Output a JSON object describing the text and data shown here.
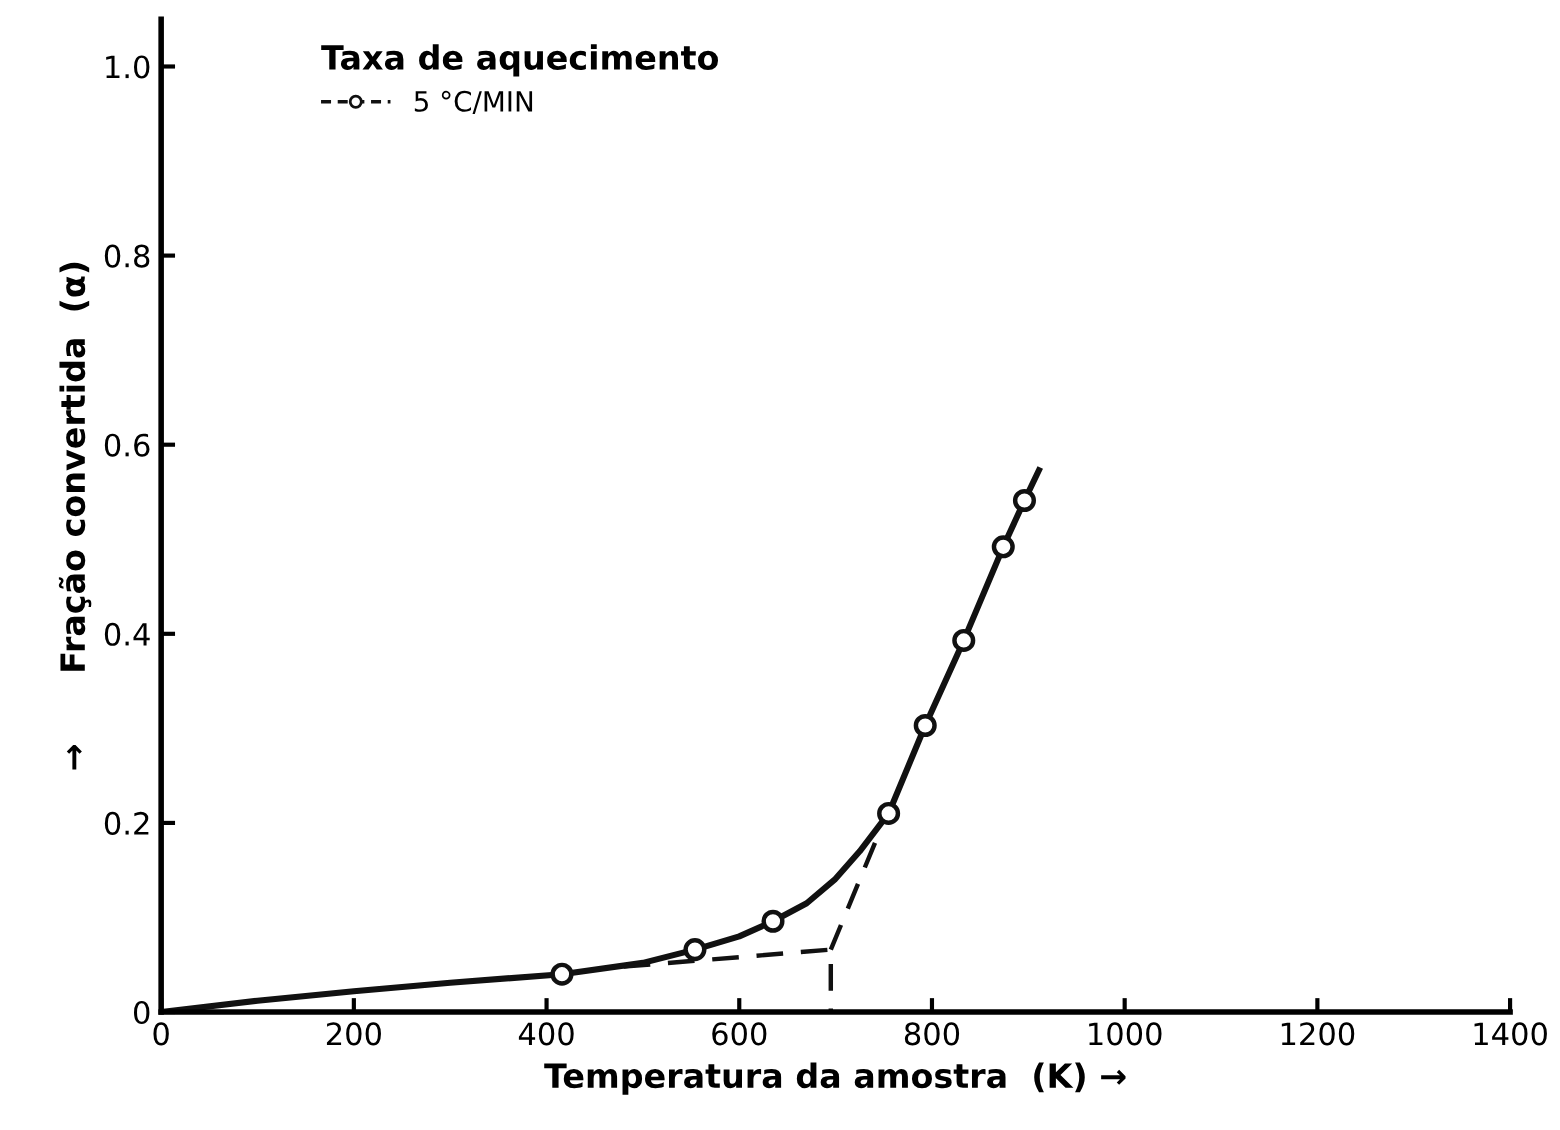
{
  "chart_data": {
    "type": "line",
    "xlabel": "Temperatura da amostra  (K) →",
    "ylabel": "→      Fração convertida  (α)",
    "legend_title": "Taxa de aquecimento",
    "legend": "top left",
    "grid": false,
    "xlim": [
      0,
      1400
    ],
    "xticks": [
      0,
      200,
      400,
      600,
      800,
      1000,
      1200,
      1400
    ],
    "ylim": [
      0,
      1.05
    ],
    "yticks": [
      0,
      0.2,
      0.4,
      0.6,
      0.8,
      {
        "value": 1,
        "label": "1.0"
      }
    ],
    "series": [
      {
        "color": "#111111",
        "line_style": "solid",
        "marker": "none",
        "x": [
          0,
          100,
          200,
          300,
          416,
          500,
          554,
          600,
          635,
          670,
          699,
          725,
          755,
          793,
          833,
          874,
          896,
          911
        ],
        "values": [
          0,
          0.012,
          0.022,
          0.031,
          0.04,
          0.052,
          0.066,
          0.08,
          0.096,
          0.115,
          0.14,
          0.17,
          0.21,
          0.303,
          0.393,
          0.492,
          0.541,
          0.573
        ]
      },
      {
        "color": "#111111",
        "line_style": "dashed",
        "marker": "none",
        "x": [
          480,
          695,
          695
        ],
        "values": [
          0.048,
          0.066,
          0
        ]
      },
      {
        "color": "#111111",
        "line_style": "dashed",
        "marker": "none",
        "x": [
          695,
          747
        ],
        "values": [
          0.066,
          0.194
        ]
      },
      {
        "type": "scatter",
        "name": "5 °C/MIN",
        "color": "#111111",
        "marker": "circle",
        "x": [
          416,
          554,
          635,
          755,
          793,
          833,
          874,
          896
        ],
        "values": [
          0.04,
          0.066,
          0.096,
          0.21,
          0.303,
          0.393,
          0.492,
          0.541
        ]
      }
    ]
  }
}
